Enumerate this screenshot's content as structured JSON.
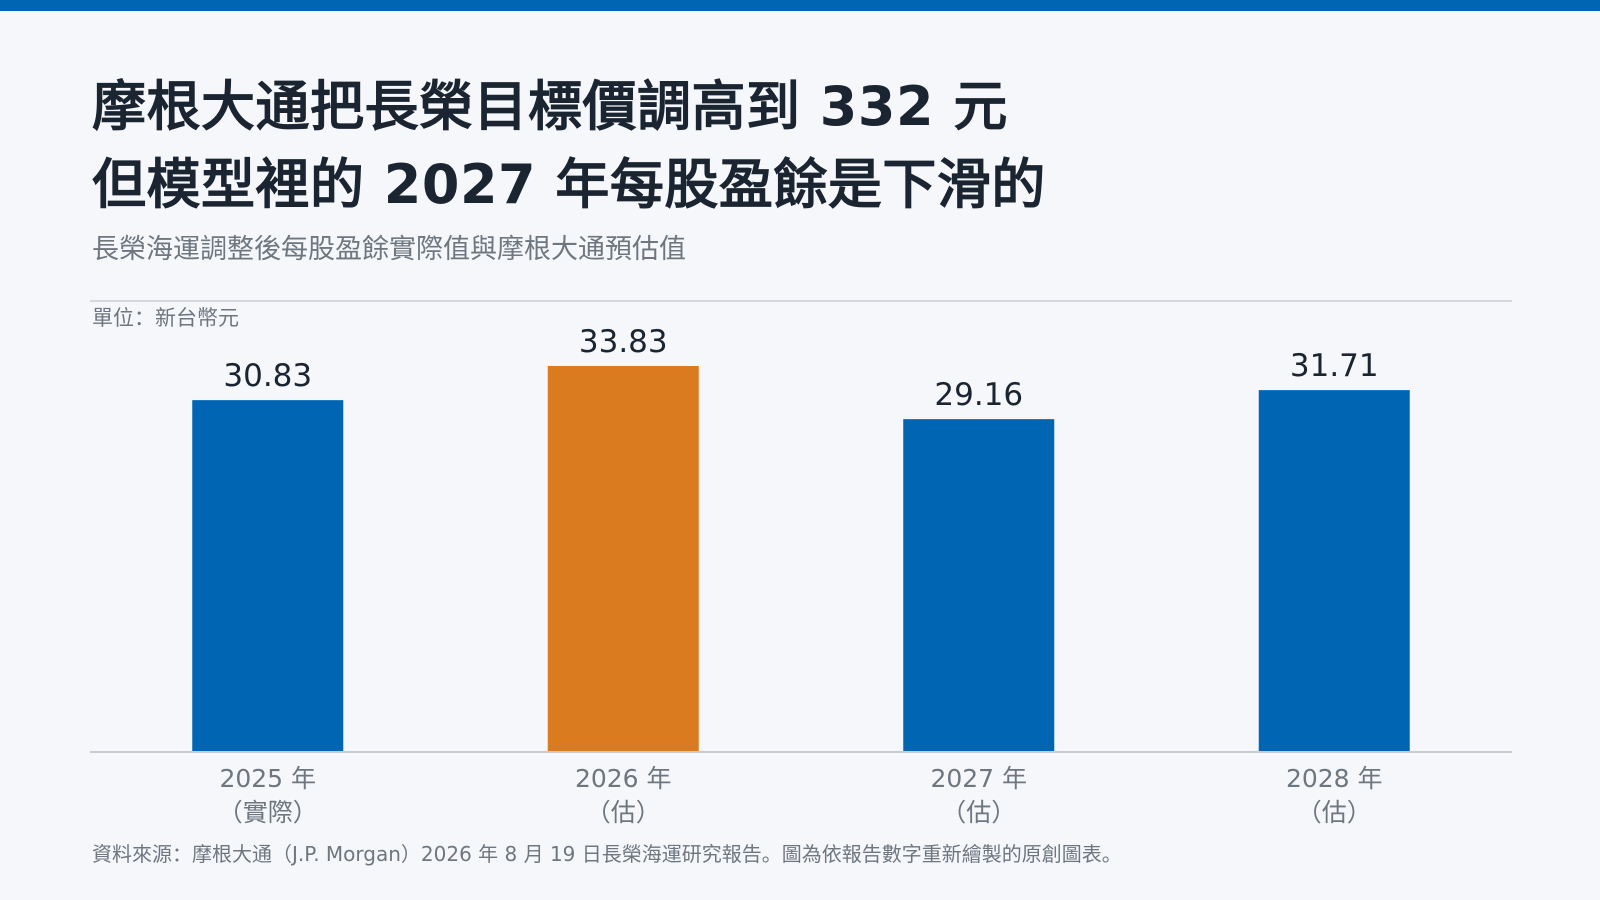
{
  "header": {
    "title_line1": "摩根大通把長榮目標價調高到 332 元",
    "title_line2": "但模型裡的 2027 年每股盈餘是下滑的",
    "subtitle": "長榮海運調整後每股盈餘實際值與摩根大通預估值"
  },
  "unit_label": "單位：新台幣元",
  "source": "資料來源：摩根大通（J.P. Morgan）2026 年 8 月 19 日長榮海運研究報告。圖為依報告數字重新繪製的原創圖表。",
  "colors": {
    "accent": "#0066b3",
    "highlight": "#d97b1e",
    "bar_default": "#0066b3",
    "axis": "#c8ccd2",
    "text_dark": "#1b2431",
    "text_muted": "#6e7680"
  },
  "chart_data": {
    "type": "bar",
    "title": "",
    "xlabel": "",
    "ylabel": "",
    "categories": [
      "2025 年",
      "2026 年",
      "2027 年",
      "2028 年"
    ],
    "category_notes": [
      "（實際）",
      "（估）",
      "（估）",
      "（估）"
    ],
    "values": [
      30.83,
      33.83,
      29.16,
      31.71
    ],
    "data_labels": [
      "30.83",
      "33.83",
      "29.16",
      "31.71"
    ],
    "highlighted_index": 1,
    "ylim": [
      0,
      40
    ],
    "grid": false,
    "legend": "none"
  }
}
